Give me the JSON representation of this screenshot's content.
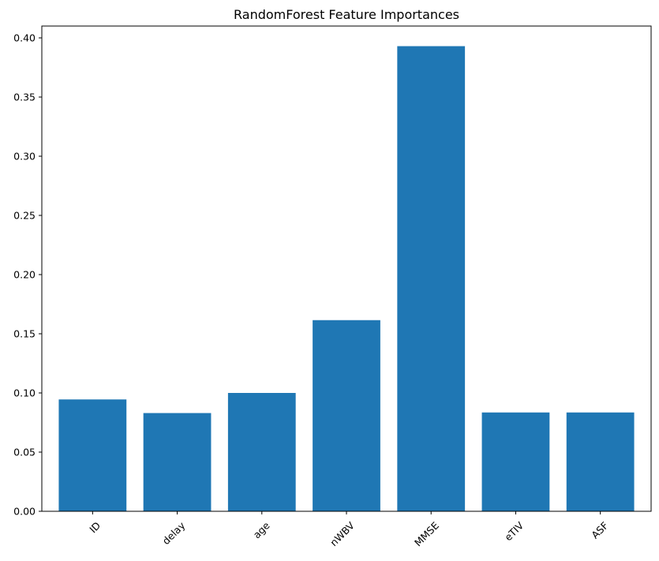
{
  "chart_data": {
    "type": "bar",
    "title": "RandomForest Feature Importances",
    "xlabel": "",
    "ylabel": "",
    "categories": [
      "ID",
      "delay",
      "age",
      "nWBV",
      "MMSE",
      "eTIV",
      "ASF"
    ],
    "values": [
      0.0945,
      0.083,
      0.1,
      0.1615,
      0.393,
      0.0835,
      0.0835
    ],
    "ylim": [
      0,
      0.41
    ],
    "yticks": [
      0.0,
      0.05,
      0.1,
      0.15,
      0.2,
      0.25,
      0.3,
      0.35,
      0.4
    ],
    "ytick_labels": [
      "0.00",
      "0.05",
      "0.10",
      "0.15",
      "0.20",
      "0.25",
      "0.30",
      "0.35",
      "0.40"
    ],
    "grid": false,
    "legend": "none",
    "xtick_rotation": 45,
    "bar_color": "#1f77b4"
  }
}
